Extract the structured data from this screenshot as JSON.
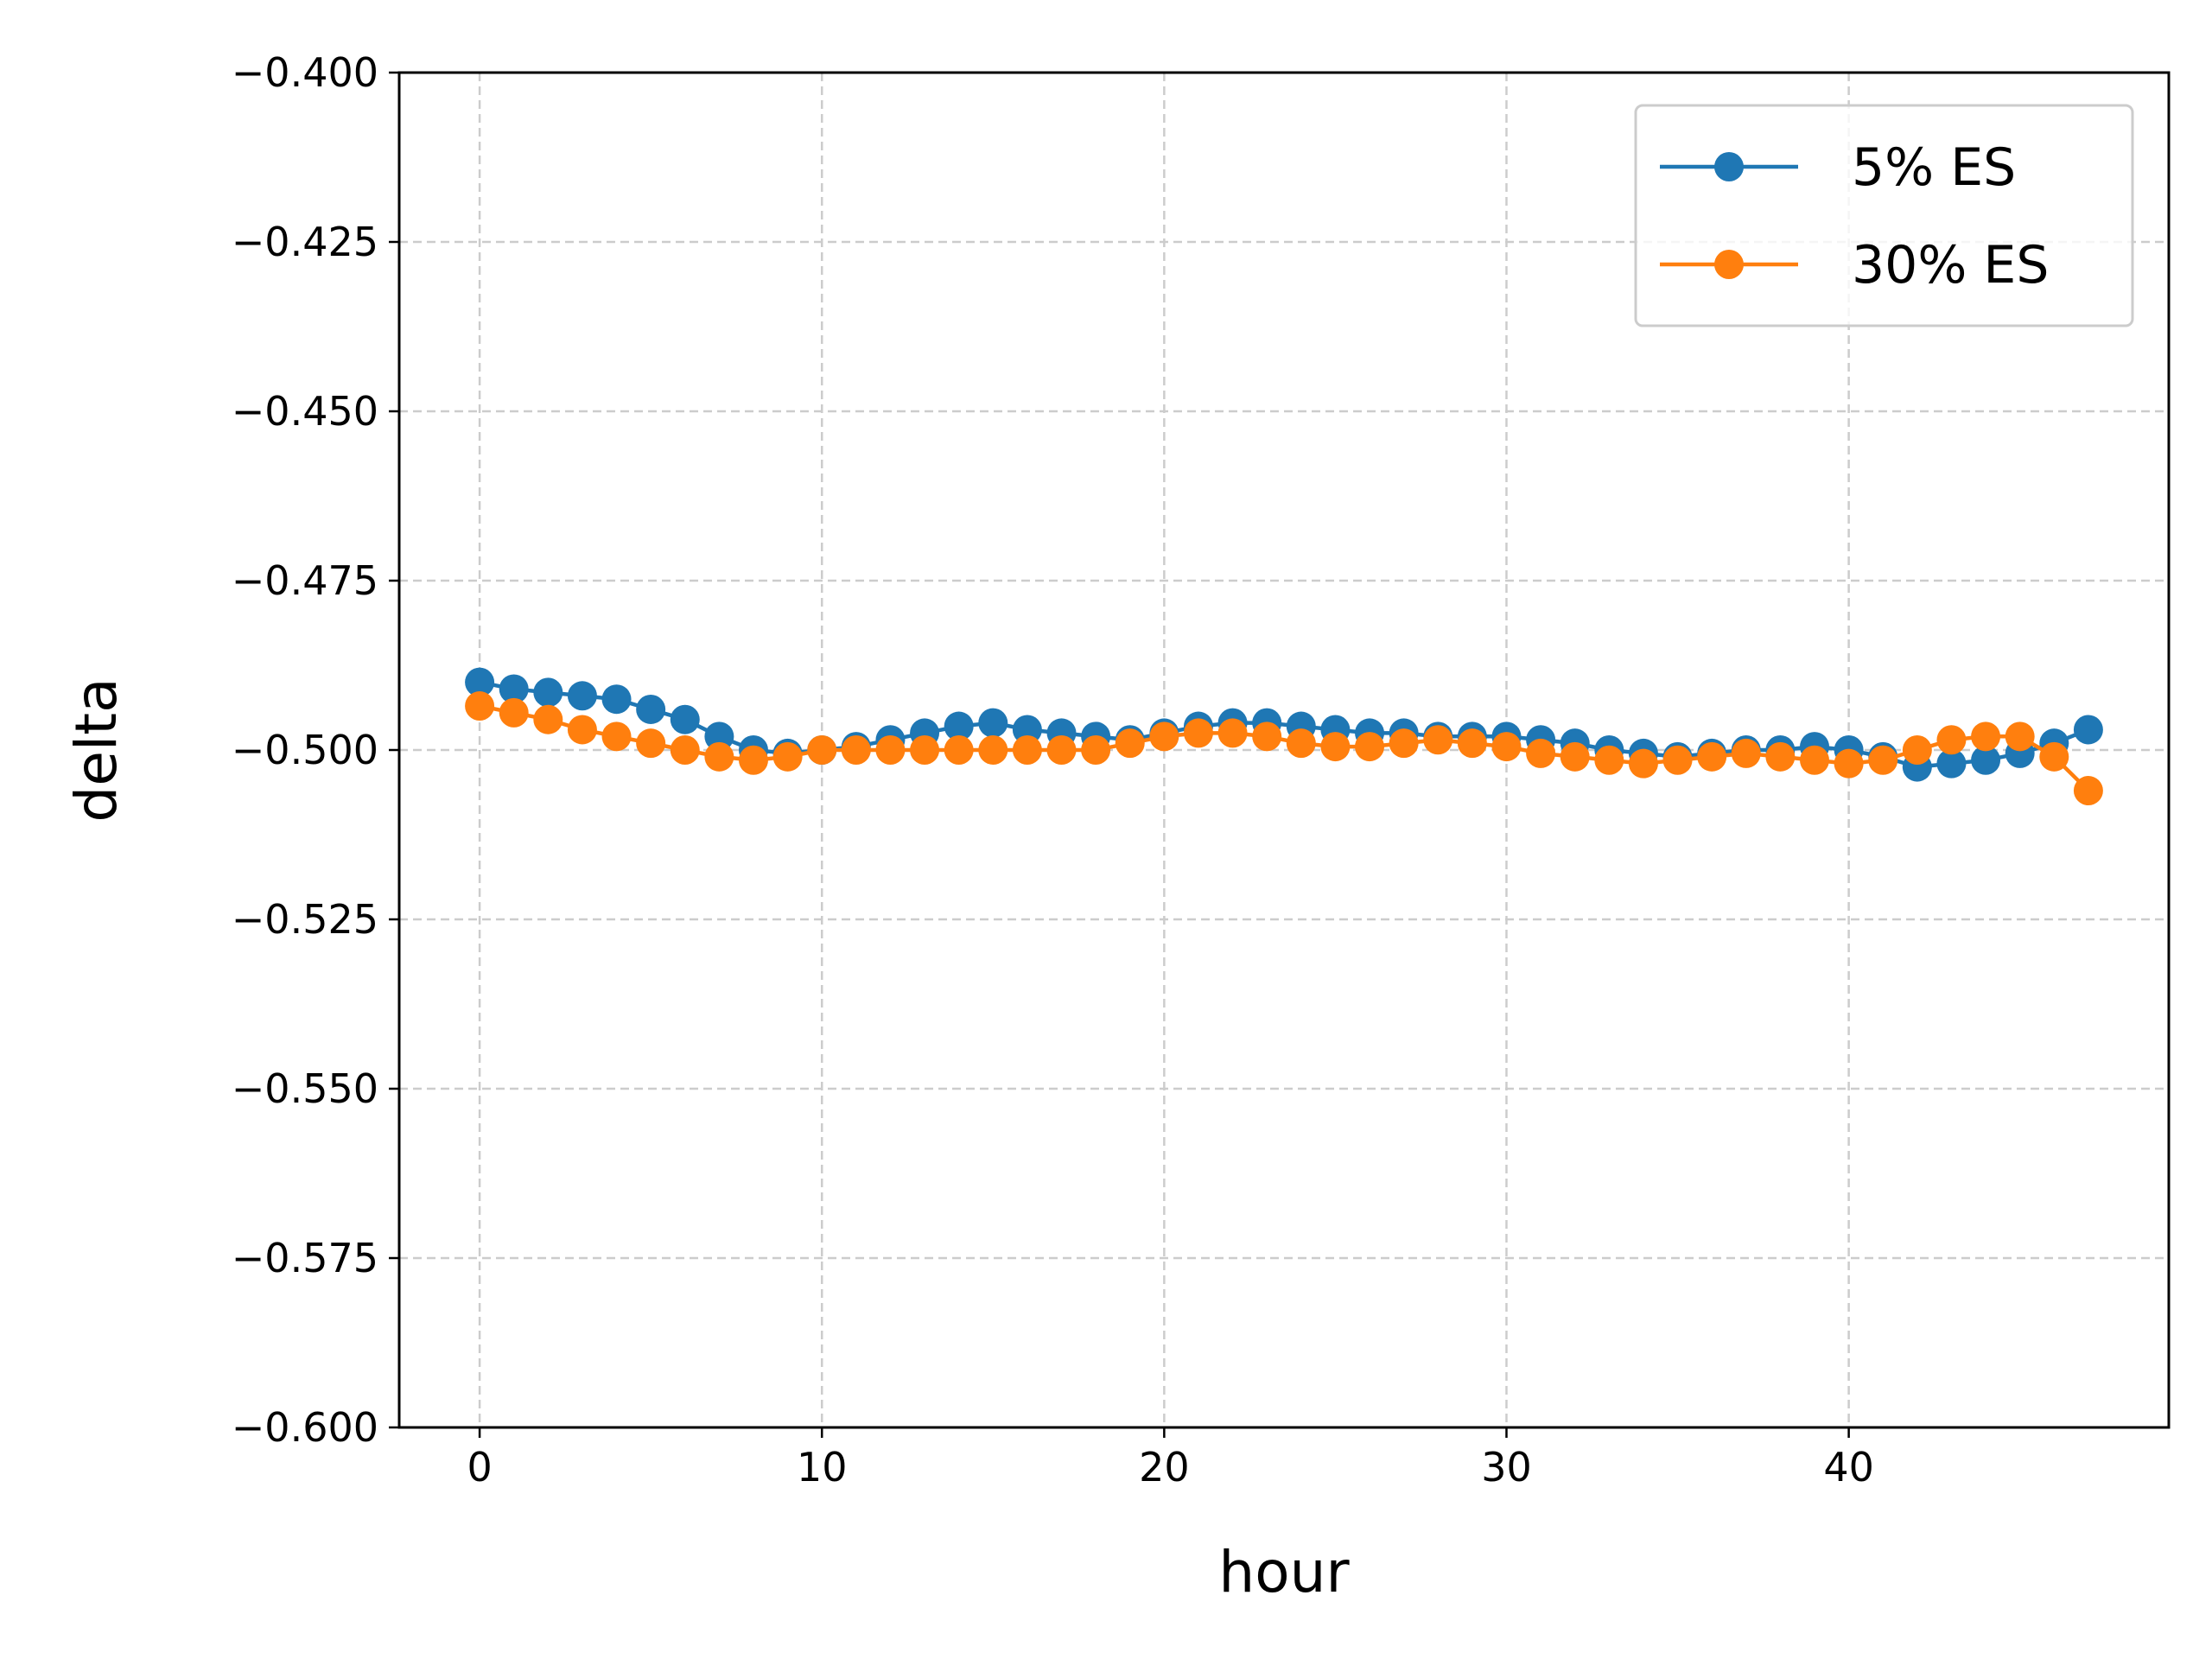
{
  "chart_data": {
    "type": "line",
    "xlabel": "hour",
    "ylabel": "delta",
    "xlim": [
      -2.35,
      49.35
    ],
    "ylim": [
      -0.6,
      -0.4
    ],
    "xticks": [
      0,
      10,
      20,
      30,
      40
    ],
    "xtick_labels": [
      "0",
      "10",
      "20",
      "30",
      "40"
    ],
    "yticks": [
      -0.4,
      -0.425,
      -0.45,
      -0.475,
      -0.5,
      -0.525,
      -0.55,
      -0.575,
      -0.6
    ],
    "ytick_labels": [
      "−0.400",
      "−0.425",
      "−0.450",
      "−0.475",
      "−0.500",
      "−0.525",
      "−0.550",
      "−0.575",
      "−0.600"
    ],
    "grid": true,
    "legend_position": "top-right",
    "marker": "circle",
    "x": [
      0,
      1,
      2,
      3,
      4,
      5,
      6,
      7,
      8,
      9,
      10,
      11,
      12,
      13,
      14,
      15,
      16,
      17,
      18,
      19,
      20,
      21,
      22,
      23,
      24,
      25,
      26,
      27,
      28,
      29,
      30,
      31,
      32,
      33,
      34,
      35,
      36,
      37,
      38,
      39,
      40,
      41,
      42,
      43,
      44,
      45,
      46,
      47
    ],
    "series": [
      {
        "name": "5% ES",
        "color": "#1f77b4",
        "values": [
          -0.49,
          -0.491,
          -0.4915,
          -0.492,
          -0.4925,
          -0.494,
          -0.4955,
          -0.498,
          -0.5,
          -0.5005,
          -0.5,
          -0.4995,
          -0.4985,
          -0.4975,
          -0.4965,
          -0.496,
          -0.497,
          -0.4975,
          -0.498,
          -0.4985,
          -0.4975,
          -0.4965,
          -0.496,
          -0.496,
          -0.4965,
          -0.497,
          -0.4975,
          -0.4975,
          -0.498,
          -0.498,
          -0.498,
          -0.4985,
          -0.499,
          -0.5,
          -0.5005,
          -0.501,
          -0.5005,
          -0.5,
          -0.5,
          -0.4995,
          -0.5,
          -0.501,
          -0.5025,
          -0.502,
          -0.5015,
          -0.5005,
          -0.499,
          -0.497
        ]
      },
      {
        "name": "30% ES",
        "color": "#ff7f0e",
        "values": [
          -0.4935,
          -0.4945,
          -0.4955,
          -0.497,
          -0.498,
          -0.499,
          -0.5,
          -0.501,
          -0.5015,
          -0.501,
          -0.5,
          -0.5,
          -0.5,
          -0.5,
          -0.5,
          -0.5,
          -0.5,
          -0.5,
          -0.5,
          -0.499,
          -0.498,
          -0.4975,
          -0.4975,
          -0.498,
          -0.499,
          -0.4995,
          -0.4995,
          -0.499,
          -0.4985,
          -0.499,
          -0.4995,
          -0.5005,
          -0.501,
          -0.5015,
          -0.502,
          -0.5015,
          -0.501,
          -0.5005,
          -0.501,
          -0.5015,
          -0.502,
          -0.5015,
          -0.5,
          -0.4985,
          -0.498,
          -0.498,
          -0.501,
          -0.506
        ]
      }
    ]
  }
}
